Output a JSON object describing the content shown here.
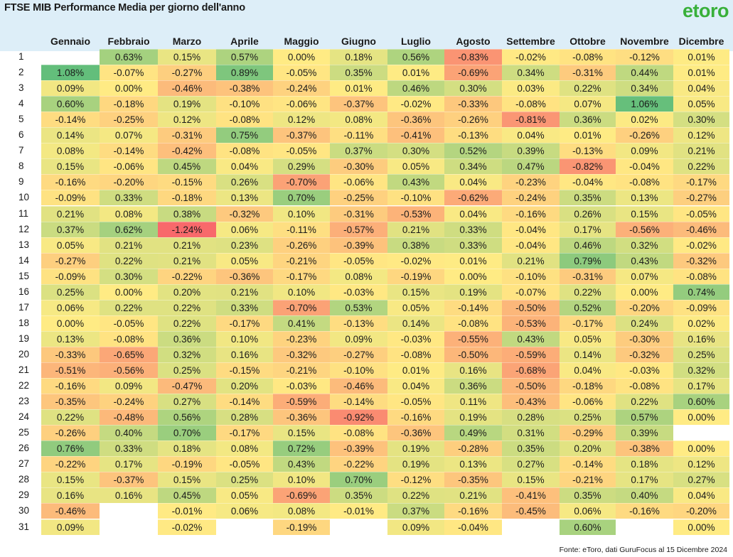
{
  "title": "FTSE MIB Performance Media per giorno dell'anno",
  "logo_text": "etoro",
  "source": "Fonte: eToro, dati GuruFocus al 15 Dicembre 2024",
  "colors": {
    "header_background": "#ddeef8",
    "scale_low": "#f8696b",
    "scale_mid": "#ffeb84",
    "scale_high": "#63be7b",
    "logo": "#38b03a"
  },
  "chart_data": {
    "type": "heatmap",
    "title": "FTSE MIB Performance Media per giorno dell'anno",
    "value_unit": "%",
    "color_scale": {
      "low": -1.24,
      "mid": 0.0,
      "high": 1.08
    },
    "columns": [
      "Gennaio",
      "Febbraio",
      "Marzo",
      "Aprile",
      "Maggio",
      "Giugno",
      "Luglio",
      "Agosto",
      "Settembre",
      "Ottobre",
      "Novembre",
      "Dicembre"
    ],
    "rows": [
      "1",
      "2",
      "3",
      "4",
      "5",
      "6",
      "7",
      "8",
      "9",
      "10",
      "11",
      "12",
      "13",
      "14",
      "15",
      "16",
      "17",
      "18",
      "19",
      "20",
      "21",
      "22",
      "23",
      "24",
      "25",
      "26",
      "27",
      "28",
      "29",
      "30",
      "31"
    ],
    "values": [
      [
        null,
        0.63,
        0.15,
        0.57,
        0.0,
        0.18,
        0.56,
        -0.83,
        -0.02,
        -0.08,
        -0.12,
        0.01
      ],
      [
        1.08,
        -0.07,
        -0.27,
        0.89,
        -0.05,
        0.35,
        0.01,
        -0.69,
        0.34,
        -0.31,
        0.44,
        0.01
      ],
      [
        0.09,
        0.0,
        -0.46,
        -0.38,
        -0.24,
        0.01,
        0.46,
        0.3,
        0.03,
        0.22,
        0.34,
        0.04
      ],
      [
        0.6,
        -0.18,
        0.19,
        -0.1,
        -0.06,
        -0.37,
        -0.02,
        -0.33,
        -0.08,
        0.07,
        1.06,
        0.05
      ],
      [
        -0.14,
        -0.25,
        0.12,
        -0.08,
        0.12,
        0.08,
        -0.36,
        -0.26,
        -0.81,
        0.36,
        0.02,
        0.3
      ],
      [
        0.14,
        0.07,
        -0.31,
        0.75,
        -0.37,
        -0.11,
        -0.41,
        -0.13,
        0.04,
        0.01,
        -0.26,
        0.12
      ],
      [
        0.08,
        -0.14,
        -0.42,
        -0.08,
        -0.05,
        0.37,
        0.3,
        0.52,
        0.39,
        -0.13,
        0.09,
        0.21
      ],
      [
        0.15,
        -0.06,
        0.45,
        0.04,
        0.29,
        -0.3,
        0.05,
        0.34,
        0.47,
        -0.82,
        -0.04,
        0.22
      ],
      [
        -0.16,
        -0.2,
        -0.15,
        0.26,
        -0.7,
        -0.06,
        0.43,
        0.04,
        -0.23,
        -0.04,
        -0.08,
        -0.17
      ],
      [
        -0.09,
        0.33,
        -0.18,
        0.13,
        0.7,
        -0.25,
        -0.1,
        -0.62,
        -0.24,
        0.35,
        0.13,
        -0.27
      ],
      [
        0.21,
        0.08,
        0.38,
        -0.32,
        0.1,
        -0.31,
        -0.53,
        0.04,
        -0.16,
        0.26,
        0.15,
        -0.05
      ],
      [
        0.37,
        0.62,
        -1.24,
        0.06,
        -0.11,
        -0.57,
        0.21,
        0.33,
        -0.04,
        0.17,
        -0.56,
        -0.46
      ],
      [
        0.05,
        0.21,
        0.21,
        0.23,
        -0.26,
        -0.39,
        0.38,
        0.33,
        -0.04,
        0.46,
        0.32,
        -0.02
      ],
      [
        -0.27,
        0.22,
        0.21,
        0.05,
        -0.21,
        -0.05,
        -0.02,
        0.01,
        0.21,
        0.79,
        0.43,
        -0.32
      ],
      [
        -0.09,
        0.3,
        -0.22,
        -0.36,
        -0.17,
        0.08,
        -0.19,
        0.0,
        -0.1,
        -0.31,
        0.07,
        -0.08
      ],
      [
        0.25,
        0.0,
        0.2,
        0.21,
        0.1,
        -0.03,
        0.15,
        0.19,
        -0.07,
        0.22,
        0.0,
        0.74
      ],
      [
        0.06,
        0.22,
        0.22,
        0.33,
        -0.7,
        0.53,
        0.05,
        -0.14,
        -0.5,
        0.52,
        -0.2,
        -0.09
      ],
      [
        0.0,
        -0.05,
        0.22,
        -0.17,
        0.41,
        -0.13,
        0.14,
        -0.08,
        -0.53,
        -0.17,
        0.24,
        0.02
      ],
      [
        0.13,
        -0.08,
        0.36,
        0.1,
        -0.23,
        0.09,
        -0.03,
        -0.55,
        0.43,
        0.05,
        -0.3,
        0.16
      ],
      [
        -0.33,
        -0.65,
        0.32,
        0.16,
        -0.32,
        -0.27,
        -0.08,
        -0.5,
        -0.59,
        0.14,
        -0.32,
        0.25
      ],
      [
        -0.51,
        -0.56,
        0.25,
        -0.15,
        -0.21,
        -0.1,
        0.01,
        0.16,
        -0.68,
        0.04,
        -0.03,
        0.32
      ],
      [
        -0.16,
        0.09,
        -0.47,
        0.2,
        -0.03,
        -0.46,
        0.04,
        0.36,
        -0.5,
        -0.18,
        -0.08,
        0.17
      ],
      [
        -0.35,
        -0.24,
        0.27,
        -0.14,
        -0.59,
        -0.14,
        -0.05,
        0.11,
        -0.43,
        -0.06,
        0.22,
        0.6
      ],
      [
        0.22,
        -0.48,
        0.56,
        0.28,
        -0.36,
        -0.92,
        -0.16,
        0.19,
        0.28,
        0.25,
        0.57,
        0.0
      ],
      [
        -0.26,
        0.4,
        0.7,
        -0.17,
        0.15,
        -0.08,
        -0.36,
        0.49,
        0.31,
        -0.29,
        0.39,
        null
      ],
      [
        0.76,
        0.33,
        0.18,
        0.08,
        0.72,
        -0.39,
        0.19,
        -0.28,
        0.35,
        0.2,
        -0.38,
        0.0
      ],
      [
        -0.22,
        0.17,
        -0.19,
        -0.05,
        0.43,
        -0.22,
        0.19,
        0.13,
        0.27,
        -0.14,
        0.18,
        0.12
      ],
      [
        0.15,
        -0.37,
        0.15,
        0.25,
        0.1,
        0.7,
        -0.12,
        -0.35,
        0.15,
        -0.21,
        0.17,
        0.27
      ],
      [
        0.16,
        0.16,
        0.45,
        0.05,
        -0.69,
        0.35,
        0.22,
        0.21,
        -0.41,
        0.35,
        0.4,
        0.04
      ],
      [
        -0.46,
        null,
        -0.01,
        0.06,
        0.08,
        -0.01,
        0.37,
        -0.16,
        -0.45,
        0.06,
        -0.16,
        -0.2
      ],
      [
        0.09,
        null,
        -0.02,
        null,
        -0.19,
        null,
        0.09,
        -0.04,
        null,
        0.6,
        null,
        0.0
      ]
    ]
  }
}
